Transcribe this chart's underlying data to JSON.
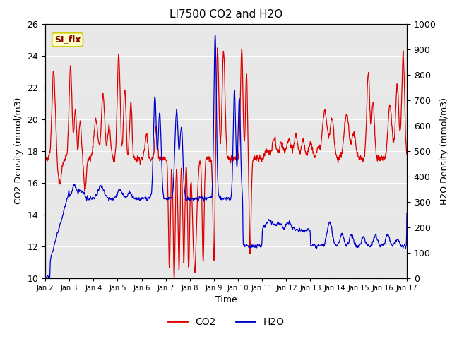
{
  "title": "LI7500 CO2 and H2O",
  "xlabel": "Time",
  "ylabel_left": "CO2 Density (mmol/m3)",
  "ylabel_right": "H2O Density (mmol/m3)",
  "ylim_left": [
    10,
    26
  ],
  "ylim_right": [
    0,
    1000
  ],
  "annotation_text": "SI_flx",
  "annotation_bbox_fc": "#ffffcc",
  "annotation_bbox_ec": "#cccc00",
  "annotation_text_color": "#880000",
  "bg_color": "#e8e8e8",
  "co2_color": "#dd0000",
  "h2o_color": "#0000cc",
  "legend_co2": "CO2",
  "legend_h2o": "H2O",
  "tick_labels": [
    "Jan 2",
    "Jan 3",
    "Jan 4",
    "Jan 5",
    "Jan 6",
    "Jan 7",
    "Jan 8",
    "Jan 9",
    "Jan 10",
    "Jan 11",
    "Jan 12",
    "Jan 13",
    "Jan 14",
    "Jan 15",
    "Jan 16",
    "Jan 17"
  ],
  "yticks_left": [
    10,
    12,
    14,
    16,
    18,
    20,
    22,
    24,
    26
  ],
  "yticks_right": [
    0,
    100,
    200,
    300,
    400,
    500,
    600,
    700,
    800,
    900,
    1000
  ],
  "n_days": 15,
  "pts_per_day": 96
}
